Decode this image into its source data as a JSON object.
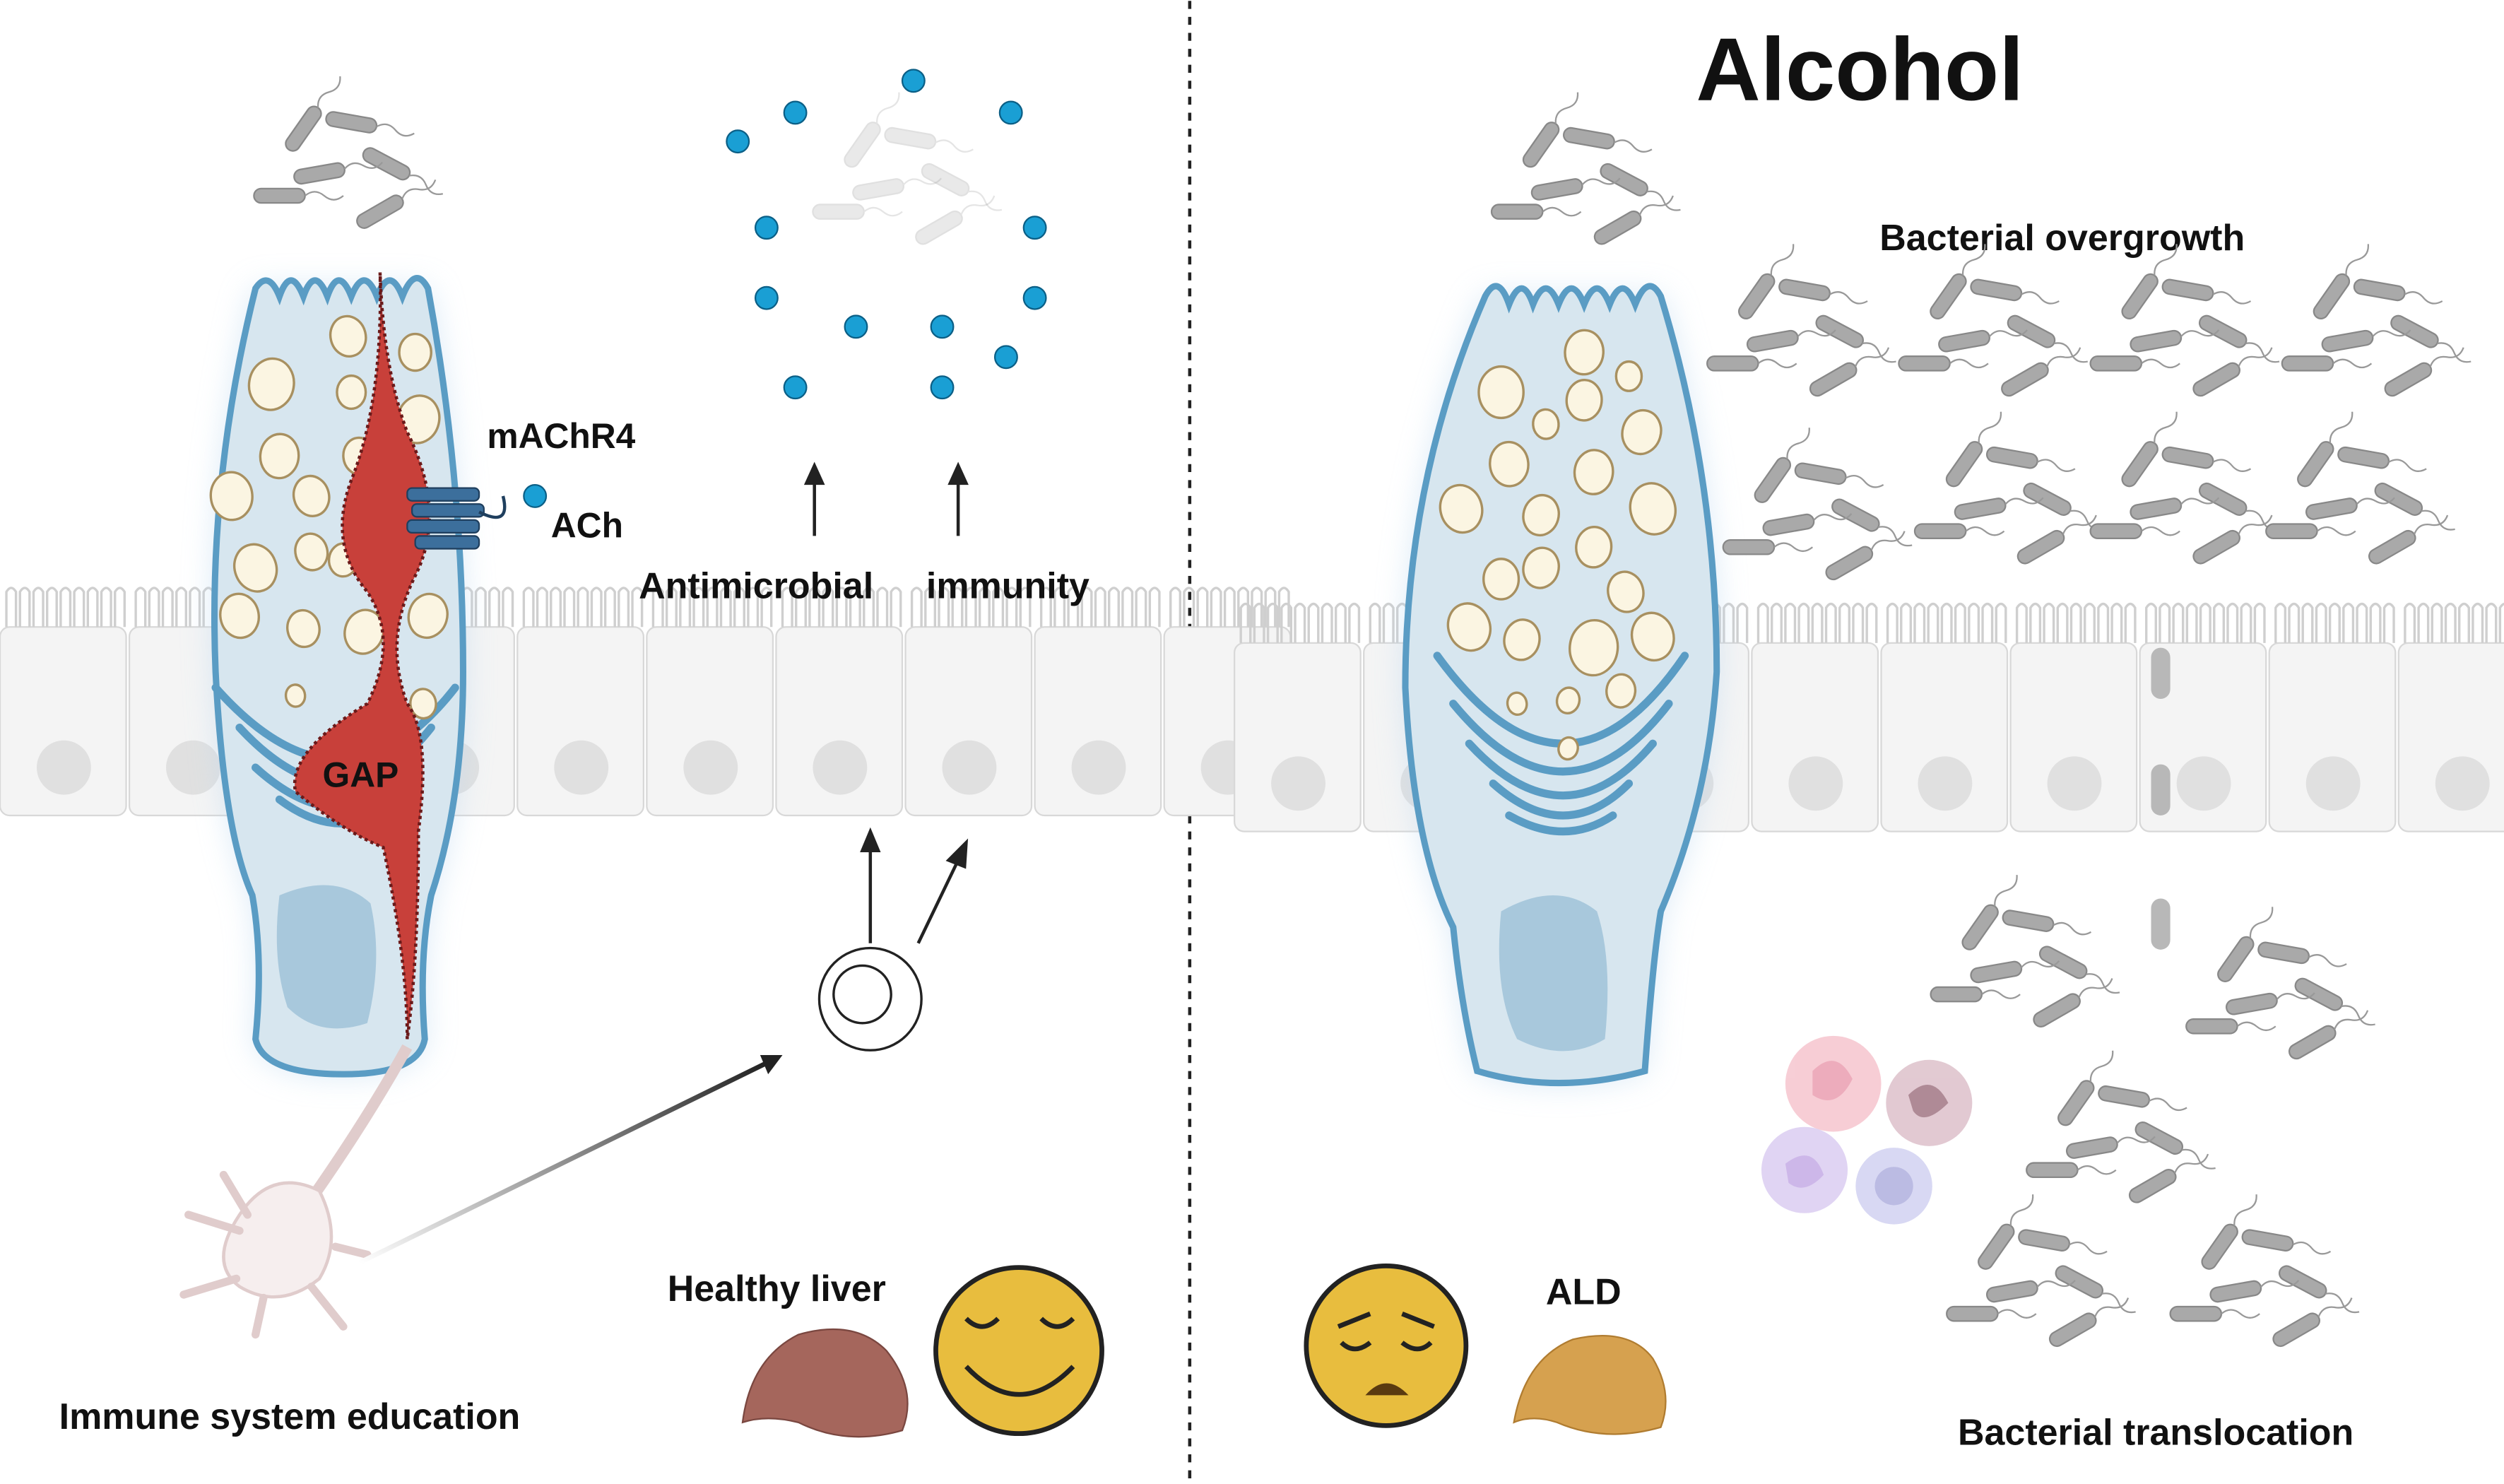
{
  "labels": {
    "machr4": "mAChR4",
    "ach": "ACh",
    "antimicrobial": "Antimicrobial",
    "immunity": "immunity",
    "gap": "GAP",
    "healthy_liver": "Healthy liver",
    "immune_education": "Immune system education",
    "alcohol": "Alcohol",
    "bacterial_overgrowth": "Bacterial overgrowth",
    "ald": "ALD",
    "bacterial_translocation": "Bacterial translocation"
  },
  "colors": {
    "goblet_fill": "#d7e6ef",
    "goblet_stroke": "#5a9cc4",
    "gap_red": "#c8403a",
    "ach_blue": "#1a9fd4",
    "bacteria_gray": "#a9a9a9",
    "face_yellow": "#e8bd3e",
    "healthy_liver": "#a5665c",
    "ald_liver": "#d6a14f"
  },
  "icons": [
    "bacteria-icon",
    "goblet-cell-icon",
    "receptor-icon",
    "ach-molecule-icon",
    "immune-cell-icon",
    "neuron-icon",
    "liver-icon",
    "happy-face-icon",
    "sad-face-icon",
    "neutrophil-icon"
  ]
}
